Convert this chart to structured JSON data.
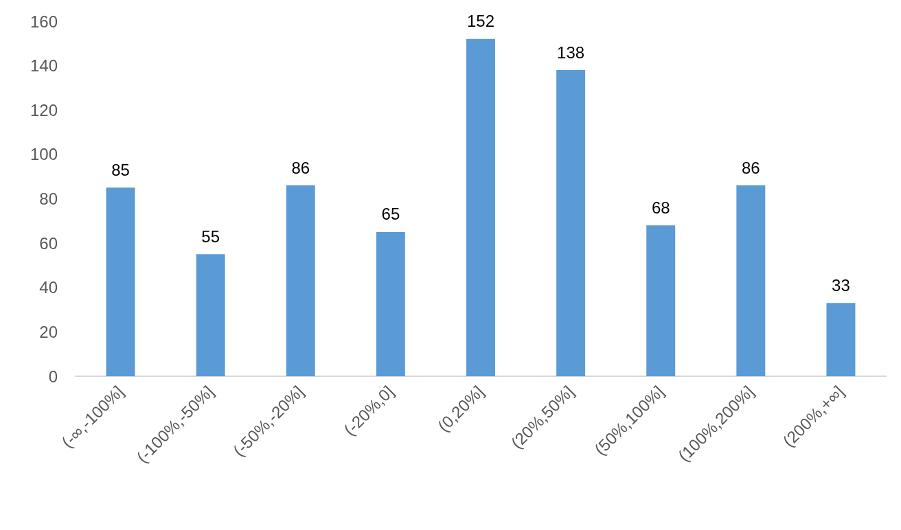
{
  "chart_data": {
    "type": "bar",
    "categories": [
      "(-∞,-100%]",
      "(-100%,-50%]",
      "(-50%,-20%]",
      "(-20%,0]",
      "(0,20%]",
      "(20%,50%]",
      "(50%,100%]",
      "(100%,200%]",
      "(200%,+∞]"
    ],
    "values": [
      85,
      55,
      86,
      65,
      152,
      138,
      68,
      86,
      33
    ],
    "color": "#5b9bd5",
    "ylim": [
      0,
      160
    ],
    "yticks": [
      0,
      20,
      40,
      60,
      80,
      100,
      120,
      140,
      160
    ],
    "data_labels": true
  }
}
